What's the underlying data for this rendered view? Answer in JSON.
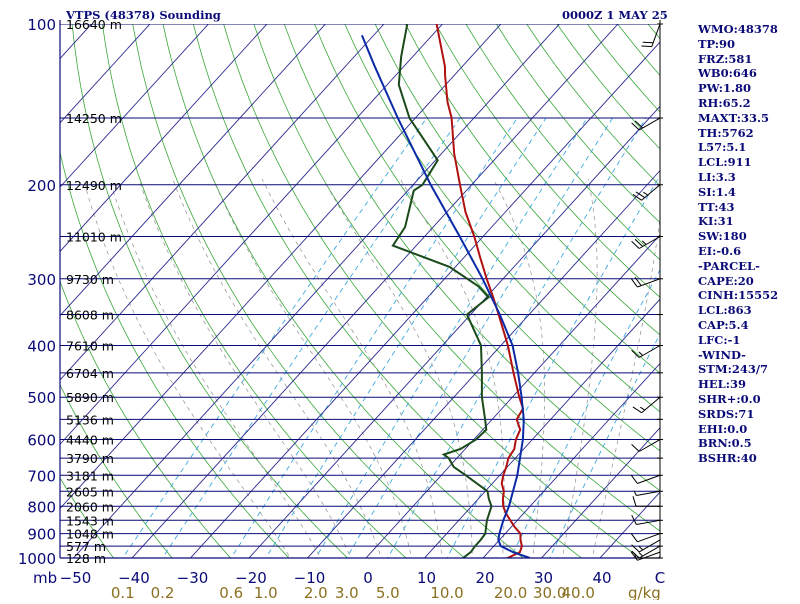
{
  "header": {
    "title": "VTPS (48378) Sounding",
    "datetime": "0000Z  1 MAY 25"
  },
  "sidebar": {
    "lines": [
      "WMO:48378",
      "TP:90",
      "FRZ:581",
      "WB0:646",
      "PW:1.80",
      "RH:65.2",
      "MAXT:33.5",
      "TH:5762",
      "L57:5.1",
      "LCL:911",
      "LI:3.3",
      "SI:1.4",
      "TT:43",
      "KI:31",
      "SW:180",
      "EI:-0.6",
      "-PARCEL-",
      "CAPE:20",
      "CINH:15552",
      "LCL:863",
      "CAP:5.4",
      "LFC:-1",
      "-WIND-",
      "STM:243/7",
      "HEL:39",
      "SHR+:0.0",
      "SRDS:71",
      "EHI:0.0",
      "BRN:0.5",
      "BSHR:40"
    ]
  },
  "chart_data": {
    "type": "line",
    "subtype": "skew-T log-P",
    "xlabel": "C",
    "ylabel": "mb",
    "pressure_ticks": [
      100,
      200,
      300,
      400,
      500,
      600,
      700,
      800,
      900,
      1000
    ],
    "temperature_ticks": [
      -50,
      -40,
      -30,
      -20,
      -10,
      0,
      10,
      20,
      30,
      40
    ],
    "ylim": [
      1000,
      100
    ],
    "height_labels": [
      {
        "p": 100,
        "label": "16640 m"
      },
      {
        "p": 150,
        "label": "14250 m"
      },
      {
        "p": 200,
        "label": "12490 m"
      },
      {
        "p": 250,
        "label": "11010 m"
      },
      {
        "p": 300,
        "label": "9730 m"
      },
      {
        "p": 350,
        "label": "8608 m"
      },
      {
        "p": 400,
        "label": "7610 m"
      },
      {
        "p": 450,
        "label": "6704 m"
      },
      {
        "p": 500,
        "label": "5890 m"
      },
      {
        "p": 550,
        "label": "5136 m"
      },
      {
        "p": 600,
        "label": "4440 m"
      },
      {
        "p": 650,
        "label": "3790 m"
      },
      {
        "p": 700,
        "label": "3181 m"
      },
      {
        "p": 750,
        "label": "2605 m"
      },
      {
        "p": 800,
        "label": "2060 m"
      },
      {
        "p": 850,
        "label": "1543 m"
      },
      {
        "p": 900,
        "label": "1048 m"
      },
      {
        "p": 950,
        "label": "577 m"
      },
      {
        "p": 1000,
        "label": "128 m"
      }
    ],
    "mixing_ratio_labels": [
      {
        "label": "0.1",
        "w": 0.1
      },
      {
        "label": "0.2",
        "w": 0.2
      },
      {
        "label": "0.6",
        "w": 0.6
      },
      {
        "label": "1.0",
        "w": 1.0
      },
      {
        "label": "2.0",
        "w": 2.0
      },
      {
        "label": "3.0",
        "w": 3.0
      },
      {
        "label": "5.0",
        "w": 5.0
      },
      {
        "label": "10.0",
        "w": 10.0
      },
      {
        "label": "20.0",
        "w": 20.0
      },
      {
        "label": "30.0",
        "w": 30.0
      },
      {
        "label": "40.0",
        "w": 40.0
      }
    ],
    "mixing_ratio_unit": "g/kg",
    "series": [
      {
        "key": "temperature",
        "color": "#b01010",
        "points": [
          [
            1002,
            24.0
          ],
          [
            1000,
            24.2
          ],
          [
            975,
            25.4
          ],
          [
            950,
            24.8
          ],
          [
            925,
            23.6
          ],
          [
            900,
            22.6
          ],
          [
            875,
            20.6
          ],
          [
            850,
            18.8
          ],
          [
            825,
            17.0
          ],
          [
            800,
            15.4
          ],
          [
            775,
            14.2
          ],
          [
            750,
            13.2
          ],
          [
            725,
            11.6
          ],
          [
            700,
            10.6
          ],
          [
            675,
            9.8
          ],
          [
            650,
            8.8
          ],
          [
            625,
            8.4
          ],
          [
            600,
            7.2
          ],
          [
            575,
            6.4
          ],
          [
            550,
            4.2
          ],
          [
            525,
            3.6
          ],
          [
            500,
            1.2
          ],
          [
            450,
            -3.6
          ],
          [
            400,
            -8.8
          ],
          [
            350,
            -15.2
          ],
          [
            325,
            -18.8
          ],
          [
            300,
            -22.8
          ],
          [
            275,
            -27.0
          ],
          [
            250,
            -31.5
          ],
          [
            225,
            -36.8
          ],
          [
            200,
            -42.0
          ],
          [
            175,
            -47.8
          ],
          [
            150,
            -53.8
          ],
          [
            140,
            -57.0
          ],
          [
            125,
            -61.5
          ],
          [
            120,
            -63.0
          ],
          [
            100,
            -71.0
          ]
        ]
      },
      {
        "key": "dewpoint",
        "color": "#1a4a1a",
        "points": [
          [
            1002,
            16.5
          ],
          [
            1000,
            16.6
          ],
          [
            975,
            17.0
          ],
          [
            950,
            16.8
          ],
          [
            925,
            16.8
          ],
          [
            900,
            16.6
          ],
          [
            850,
            14.8
          ],
          [
            800,
            13.4
          ],
          [
            775,
            11.8
          ],
          [
            750,
            10.4
          ],
          [
            700,
            4.2
          ],
          [
            675,
            0.8
          ],
          [
            650,
            -1.4
          ],
          [
            640,
            -2.8
          ],
          [
            625,
            -0.8
          ],
          [
            600,
            0.4
          ],
          [
            575,
            0.6
          ],
          [
            550,
            -1.2
          ],
          [
            500,
            -5.2
          ],
          [
            450,
            -9.0
          ],
          [
            400,
            -13.4
          ],
          [
            350,
            -20.6
          ],
          [
            325,
            -19.6
          ],
          [
            310,
            -23.0
          ],
          [
            285,
            -31.0
          ],
          [
            260,
            -44.0
          ],
          [
            240,
            -44.8
          ],
          [
            205,
            -49.0
          ],
          [
            200,
            -48.4
          ],
          [
            180,
            -49.6
          ],
          [
            150,
            -61.0
          ],
          [
            130,
            -68.0
          ],
          [
            115,
            -72.0
          ],
          [
            100,
            -76.0
          ]
        ]
      },
      {
        "key": "parcel",
        "color": "#0b2aa6",
        "points": [
          [
            1000,
            28.0
          ],
          [
            975,
            24.2
          ],
          [
            950,
            21.2
          ],
          [
            925,
            19.8
          ],
          [
            900,
            19.0
          ],
          [
            850,
            17.6
          ],
          [
            800,
            16.4
          ],
          [
            700,
            13.0
          ],
          [
            600,
            8.4
          ],
          [
            550,
            5.4
          ],
          [
            500,
            1.6
          ],
          [
            450,
            -2.8
          ],
          [
            400,
            -8.0
          ],
          [
            350,
            -15.0
          ],
          [
            300,
            -23.5
          ],
          [
            250,
            -34.0
          ],
          [
            200,
            -47.0
          ],
          [
            150,
            -63.0
          ],
          [
            120,
            -75.0
          ],
          [
            105,
            -82.0
          ]
        ]
      }
    ],
    "wind_barbs": [
      {
        "p": 1000,
        "dir": 270,
        "speed": 5
      },
      {
        "p": 975,
        "dir": 250,
        "speed": 10
      },
      {
        "p": 950,
        "dir": 240,
        "speed": 15
      },
      {
        "p": 925,
        "dir": 240,
        "speed": 15
      },
      {
        "p": 900,
        "dir": 250,
        "speed": 10
      },
      {
        "p": 850,
        "dir": 260,
        "speed": 10
      },
      {
        "p": 800,
        "dir": 270,
        "speed": 10
      },
      {
        "p": 750,
        "dir": 260,
        "speed": 5
      },
      {
        "p": 700,
        "dir": 250,
        "speed": 10
      },
      {
        "p": 600,
        "dir": 240,
        "speed": 10
      },
      {
        "p": 500,
        "dir": 230,
        "speed": 15
      },
      {
        "p": 400,
        "dir": 240,
        "speed": 15
      },
      {
        "p": 300,
        "dir": 250,
        "speed": 20
      },
      {
        "p": 250,
        "dir": 240,
        "speed": 25
      },
      {
        "p": 200,
        "dir": 230,
        "speed": 25
      },
      {
        "p": 150,
        "dir": 240,
        "speed": 20
      },
      {
        "p": 100,
        "dir": 200,
        "speed": 20
      }
    ],
    "colors": {
      "isobar": "#0a0a78",
      "isotherm": "#2a2a90",
      "dry_adiabat": "#3aa83a",
      "moist_adiabat": "#909090",
      "mixing_ratio": "#40a8e0",
      "axis_text": "#0a0a78",
      "mixing_text": "#8a7020"
    },
    "grid": true
  }
}
